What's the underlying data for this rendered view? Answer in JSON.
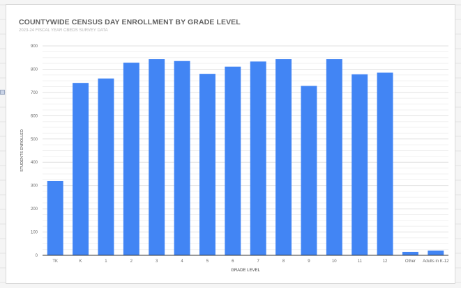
{
  "chart": {
    "title": "COUNTYWIDE CENSUS DAY ENROLLMENT BY GRADE LEVEL",
    "subtitle": "2023-24 FISCAL YEAR CBEDS SURVEY DATA"
  },
  "colors": {
    "bar": "#4285f4",
    "gridline": "#e0e0e0",
    "axis_text": "#666666",
    "title": "#616161"
  },
  "chart_data": {
    "type": "bar",
    "title": "COUNTYWIDE CENSUS DAY ENROLLMENT BY GRADE LEVEL",
    "subtitle": "2023-24 FISCAL YEAR CBEDS SURVEY DATA",
    "xlabel": "GRADE LEVEL",
    "ylabel": "STUDENTS ENROLLED",
    "categories": [
      "TK",
      "K",
      "1",
      "2",
      "3",
      "4",
      "5",
      "6",
      "7",
      "8",
      "9",
      "10",
      "11",
      "12",
      "Other",
      "Adults in K-12"
    ],
    "values": [
      320,
      741,
      760,
      828,
      843,
      835,
      780,
      811,
      833,
      843,
      728,
      843,
      778,
      785,
      15,
      20
    ],
    "ylim": [
      0,
      900
    ],
    "yticks": [
      0,
      100,
      200,
      300,
      400,
      500,
      600,
      700,
      800,
      900
    ],
    "grid": true,
    "minor_grid": true,
    "legend": "none"
  }
}
